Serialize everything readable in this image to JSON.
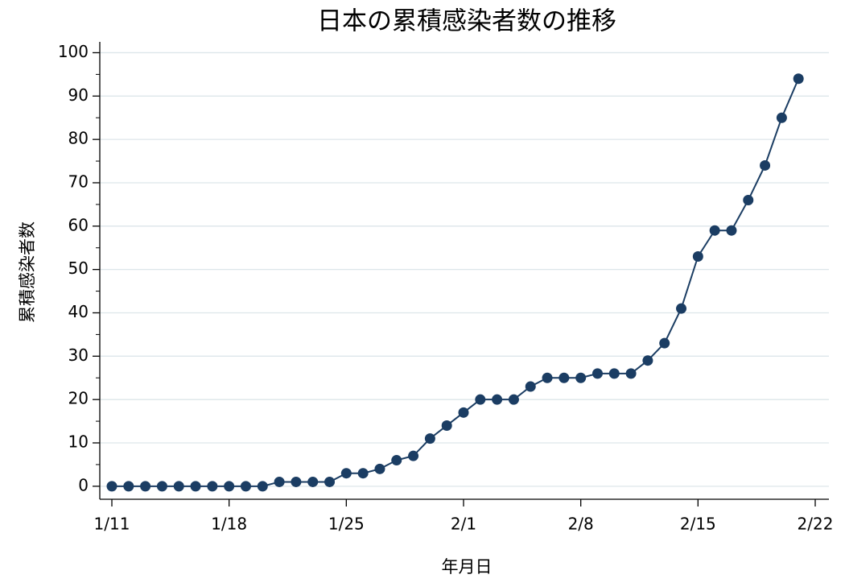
{
  "chart_data": {
    "type": "line",
    "title": "日本の累積感染者数の推移",
    "x_label": "年月日",
    "y_label": "累積感染者数",
    "x": [
      "1/11",
      "1/12",
      "1/13",
      "1/14",
      "1/15",
      "1/16",
      "1/17",
      "1/18",
      "1/19",
      "1/20",
      "1/21",
      "1/22",
      "1/23",
      "1/24",
      "1/25",
      "1/26",
      "1/27",
      "1/28",
      "1/29",
      "1/30",
      "1/31",
      "2/1",
      "2/2",
      "2/3",
      "2/4",
      "2/5",
      "2/6",
      "2/7",
      "2/8",
      "2/9",
      "2/10",
      "2/11",
      "2/12",
      "2/13",
      "2/14",
      "2/15",
      "2/16",
      "2/17",
      "2/18",
      "2/19",
      "2/20",
      "2/21"
    ],
    "values": [
      0,
      0,
      0,
      0,
      0,
      0,
      0,
      0,
      0,
      0,
      1,
      1,
      1,
      1,
      3,
      3,
      4,
      6,
      7,
      11,
      14,
      17,
      20,
      20,
      20,
      23,
      25,
      25,
      25,
      26,
      26,
      26,
      29,
      33,
      41,
      53,
      59,
      59,
      66,
      74,
      85,
      94
    ],
    "color": "#1b3d63",
    "xticks": [
      "1/11",
      "1/18",
      "1/25",
      "2/1",
      "2/8",
      "2/15",
      "2/22"
    ],
    "ylim": [
      -3,
      102.5
    ],
    "yticks": [
      0,
      10,
      20,
      30,
      40,
      50,
      60,
      70,
      80,
      90,
      100
    ],
    "grid": true
  }
}
